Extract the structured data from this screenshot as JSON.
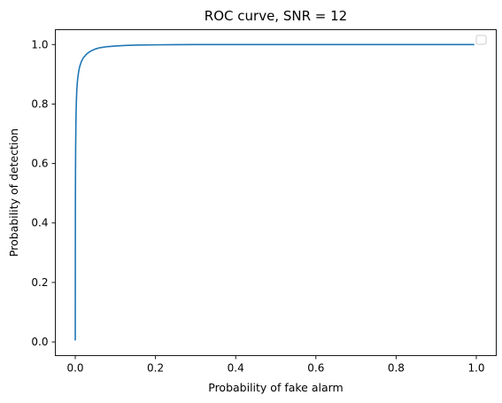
{
  "chart_data": {
    "type": "line",
    "title": "ROC curve, SNR = 12",
    "xlabel": "Probability of fake alarm",
    "ylabel": "Probability of detection",
    "xlim": [
      -0.0497,
      1.0497
    ],
    "ylim": [
      -0.046,
      1.05
    ],
    "xticks": [
      0.0,
      0.2,
      0.4,
      0.6,
      0.8,
      1.0
    ],
    "yticks": [
      0.0,
      0.2,
      0.4,
      0.6,
      0.8,
      1.0
    ],
    "xtick_labels": [
      "0.0",
      "0.2",
      "0.4",
      "0.6",
      "0.8",
      "1.0"
    ],
    "ytick_labels": [
      "0.0",
      "0.2",
      "0.4",
      "0.6",
      "0.8",
      "1.0"
    ],
    "grid": false,
    "legend": {
      "placement": "top-right",
      "entries": []
    },
    "line_color": "#1f77b4",
    "series": [
      {
        "x": [
          0.0,
          0.0003,
          0.0006,
          0.001,
          0.0015,
          0.002,
          0.003,
          0.004,
          0.005,
          0.006,
          0.008,
          0.01,
          0.0125,
          0.015,
          0.0175,
          0.02,
          0.025,
          0.03,
          0.035,
          0.04,
          0.05,
          0.06,
          0.07,
          0.08,
          0.1,
          0.125,
          0.15,
          0.2,
          0.25,
          0.3,
          0.4,
          0.5,
          0.6,
          0.7,
          0.8,
          0.9,
          0.995
        ],
        "y": [
          0.005,
          0.45,
          0.57,
          0.66,
          0.72,
          0.77,
          0.82,
          0.85,
          0.87,
          0.885,
          0.905,
          0.92,
          0.932,
          0.942,
          0.949,
          0.955,
          0.963,
          0.97,
          0.975,
          0.979,
          0.985,
          0.989,
          0.991,
          0.993,
          0.995,
          0.997,
          0.998,
          0.999,
          0.9995,
          0.9998,
          1.0,
          1.0,
          1.0,
          1.0,
          1.0,
          1.0,
          1.0
        ]
      }
    ]
  }
}
